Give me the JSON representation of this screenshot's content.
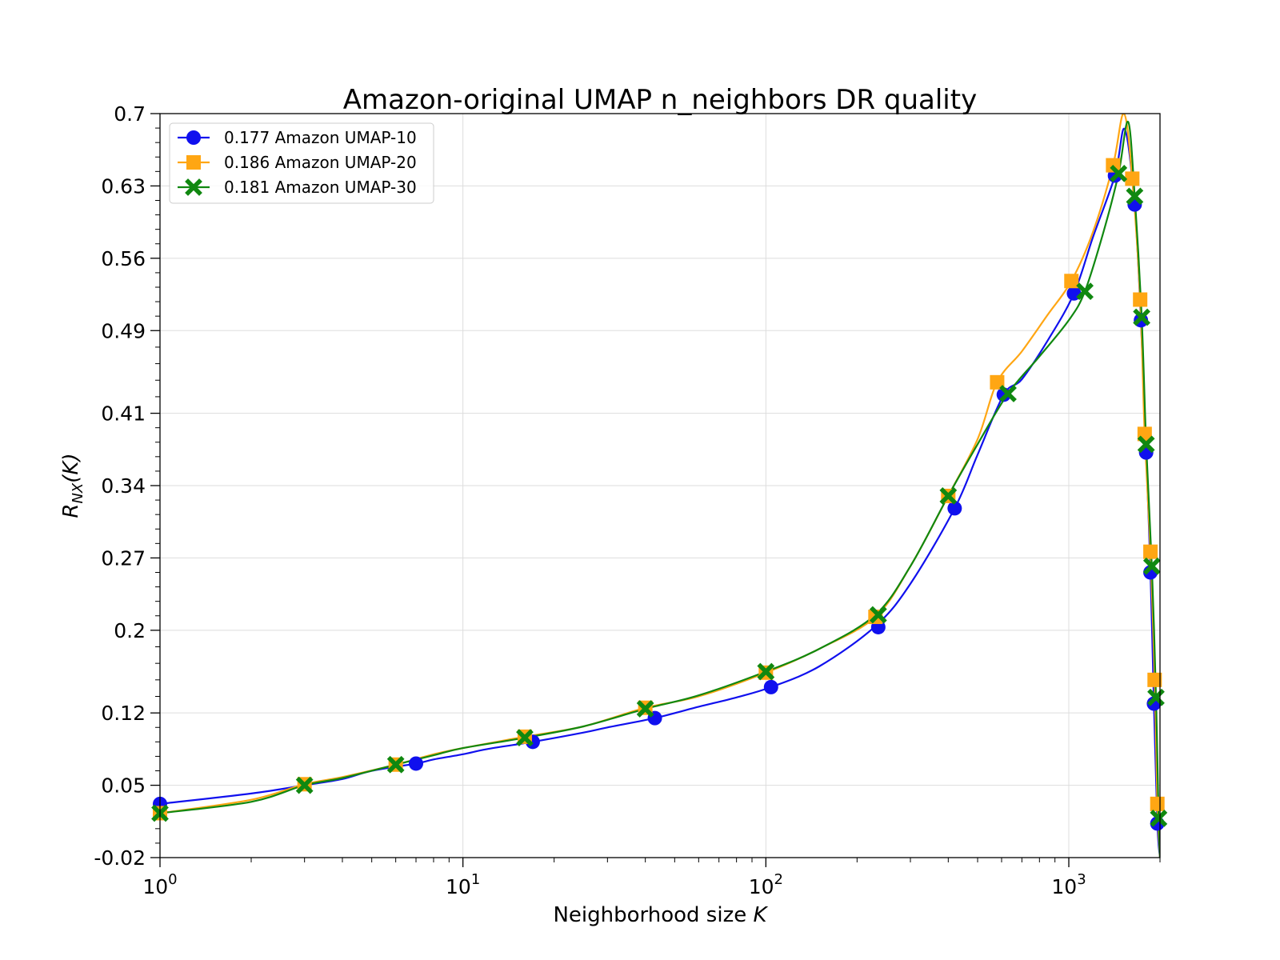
{
  "chart_data": {
    "type": "line",
    "title": "Amazon-original UMAP n_neighbors DR quality",
    "xlabel_text": "Neighborhood size ",
    "xlabel_italic": "K",
    "ylabel_main": "R",
    "ylabel_sub": "NX",
    "ylabel_rest": "(K)",
    "x_scale": "log",
    "xlim": [
      1,
      2000
    ],
    "ylim": [
      -0.02,
      0.7
    ],
    "x_ticks": [
      {
        "value": 1,
        "base": "10",
        "exp": "0"
      },
      {
        "value": 10,
        "base": "10",
        "exp": "1"
      },
      {
        "value": 100,
        "base": "10",
        "exp": "2"
      },
      {
        "value": 1000,
        "base": "10",
        "exp": "3"
      }
    ],
    "y_ticks": [
      {
        "value": -0.02,
        "label": "-0.02"
      },
      {
        "value": 0.05,
        "label": "0.05"
      },
      {
        "value": 0.12,
        "label": "0.12"
      },
      {
        "value": 0.2,
        "label": "0.2"
      },
      {
        "value": 0.27,
        "label": "0.27"
      },
      {
        "value": 0.34,
        "label": "0.34"
      },
      {
        "value": 0.41,
        "label": "0.41"
      },
      {
        "value": 0.49,
        "label": "0.49"
      },
      {
        "value": 0.56,
        "label": "0.56"
      },
      {
        "value": 0.63,
        "label": "0.63"
      },
      {
        "value": 0.7,
        "label": "0.7"
      }
    ],
    "grid": true,
    "legend_position": "upper-left",
    "series": [
      {
        "name": "0.177 Amazon UMAP-10",
        "color": "#1010ee",
        "marker": "circle",
        "line": [
          [
            1,
            0.032
          ],
          [
            2,
            0.042
          ],
          [
            3,
            0.05
          ],
          [
            4,
            0.056
          ],
          [
            5,
            0.064
          ],
          [
            7,
            0.071
          ],
          [
            8,
            0.075
          ],
          [
            10,
            0.08
          ],
          [
            12,
            0.085
          ],
          [
            17,
            0.092
          ],
          [
            25,
            0.101
          ],
          [
            30,
            0.106
          ],
          [
            43,
            0.115
          ],
          [
            60,
            0.126
          ],
          [
            80,
            0.135
          ],
          [
            104,
            0.145
          ],
          [
            150,
            0.165
          ],
          [
            230,
            0.204
          ],
          [
            300,
            0.245
          ],
          [
            420,
            0.318
          ],
          [
            500,
            0.37
          ],
          [
            610,
            0.428
          ],
          [
            700,
            0.443
          ],
          [
            850,
            0.48
          ],
          [
            1040,
            0.526
          ],
          [
            1200,
            0.58
          ],
          [
            1420,
            0.64
          ],
          [
            1530,
            0.685
          ],
          [
            1650,
            0.61
          ],
          [
            1730,
            0.5
          ],
          [
            1800,
            0.372
          ],
          [
            1860,
            0.256
          ],
          [
            1910,
            0.129
          ],
          [
            1960,
            0.013
          ],
          [
            2000,
            -0.02
          ]
        ],
        "markers": [
          [
            1,
            0.032
          ],
          [
            7,
            0.071
          ],
          [
            17,
            0.092
          ],
          [
            43,
            0.115
          ],
          [
            104,
            0.145
          ],
          [
            235,
            0.203
          ],
          [
            420,
            0.318
          ],
          [
            610,
            0.428
          ],
          [
            1040,
            0.526
          ],
          [
            1420,
            0.64
          ],
          [
            1650,
            0.612
          ],
          [
            1730,
            0.5
          ],
          [
            1800,
            0.372
          ],
          [
            1860,
            0.256
          ],
          [
            1910,
            0.129
          ],
          [
            1960,
            0.013
          ]
        ]
      },
      {
        "name": "0.186 Amazon UMAP-20",
        "color": "#ffa613",
        "marker": "square",
        "line": [
          [
            1,
            0.023
          ],
          [
            2,
            0.036
          ],
          [
            3,
            0.051
          ],
          [
            4,
            0.058
          ],
          [
            6,
            0.07
          ],
          [
            8,
            0.08
          ],
          [
            10,
            0.086
          ],
          [
            16,
            0.097
          ],
          [
            25,
            0.107
          ],
          [
            40,
            0.125
          ],
          [
            60,
            0.136
          ],
          [
            100,
            0.159
          ],
          [
            150,
            0.182
          ],
          [
            230,
            0.213
          ],
          [
            300,
            0.262
          ],
          [
            400,
            0.33
          ],
          [
            500,
            0.385
          ],
          [
            580,
            0.44
          ],
          [
            700,
            0.47
          ],
          [
            850,
            0.505
          ],
          [
            1020,
            0.538
          ],
          [
            1200,
            0.585
          ],
          [
            1400,
            0.65
          ],
          [
            1520,
            0.7
          ],
          [
            1620,
            0.637
          ],
          [
            1720,
            0.52
          ],
          [
            1780,
            0.39
          ],
          [
            1860,
            0.276
          ],
          [
            1920,
            0.152
          ],
          [
            1960,
            0.032
          ],
          [
            2000,
            -0.02
          ]
        ],
        "markers": [
          [
            1,
            0.023
          ],
          [
            3,
            0.051
          ],
          [
            6,
            0.07
          ],
          [
            16,
            0.097
          ],
          [
            40,
            0.125
          ],
          [
            100,
            0.159
          ],
          [
            230,
            0.213
          ],
          [
            400,
            0.33
          ],
          [
            580,
            0.44
          ],
          [
            1020,
            0.538
          ],
          [
            1400,
            0.65
          ],
          [
            1620,
            0.637
          ],
          [
            1720,
            0.52
          ],
          [
            1780,
            0.39
          ],
          [
            1860,
            0.276
          ],
          [
            1920,
            0.152
          ],
          [
            1960,
            0.032
          ]
        ]
      },
      {
        "name": "0.181 Amazon UMAP-30",
        "color": "#108810",
        "marker": "x",
        "line": [
          [
            1,
            0.023
          ],
          [
            2,
            0.034
          ],
          [
            3,
            0.05
          ],
          [
            4,
            0.057
          ],
          [
            6,
            0.07
          ],
          [
            8,
            0.079
          ],
          [
            10,
            0.086
          ],
          [
            16,
            0.096
          ],
          [
            25,
            0.107
          ],
          [
            40,
            0.124
          ],
          [
            60,
            0.137
          ],
          [
            100,
            0.16
          ],
          [
            150,
            0.182
          ],
          [
            230,
            0.215
          ],
          [
            300,
            0.262
          ],
          [
            400,
            0.33
          ],
          [
            500,
            0.38
          ],
          [
            630,
            0.429
          ],
          [
            800,
            0.465
          ],
          [
            1000,
            0.5
          ],
          [
            1130,
            0.528
          ],
          [
            1300,
            0.585
          ],
          [
            1460,
            0.642
          ],
          [
            1570,
            0.692
          ],
          [
            1650,
            0.62
          ],
          [
            1740,
            0.503
          ],
          [
            1800,
            0.38
          ],
          [
            1880,
            0.262
          ],
          [
            1940,
            0.135
          ],
          [
            1980,
            0.018
          ],
          [
            2000,
            -0.02
          ]
        ],
        "markers": [
          [
            1,
            0.023
          ],
          [
            3,
            0.05
          ],
          [
            6,
            0.07
          ],
          [
            16,
            0.096
          ],
          [
            40,
            0.124
          ],
          [
            100,
            0.16
          ],
          [
            235,
            0.215
          ],
          [
            400,
            0.33
          ],
          [
            630,
            0.429
          ],
          [
            1130,
            0.528
          ],
          [
            1460,
            0.642
          ],
          [
            1650,
            0.62
          ],
          [
            1740,
            0.503
          ],
          [
            1800,
            0.38
          ],
          [
            1880,
            0.262
          ],
          [
            1940,
            0.135
          ],
          [
            1980,
            0.018
          ]
        ]
      }
    ]
  }
}
